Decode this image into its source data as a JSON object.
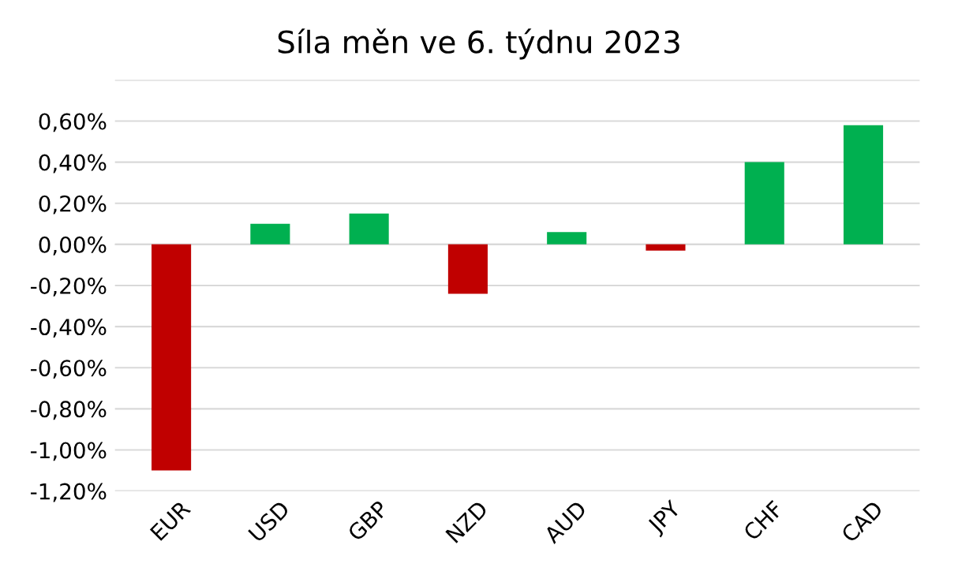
{
  "chart_data": {
    "type": "bar",
    "title": "Síla měn ve 6. týdnu 2023",
    "categories": [
      "EUR",
      "USD",
      "GBP",
      "NZD",
      "AUD",
      "JPY",
      "CHF",
      "CAD"
    ],
    "values": [
      -1.1,
      0.1,
      0.15,
      -0.24,
      0.06,
      -0.03,
      0.4,
      0.58
    ],
    "colors": [
      "#c00000",
      "#00b050",
      "#00b050",
      "#c00000",
      "#00b050",
      "#c00000",
      "#00b050",
      "#00b050"
    ],
    "ylim": [
      -1.2,
      0.8
    ],
    "yticks": [
      {
        "value": -1.2,
        "label": "-1,20%"
      },
      {
        "value": -1.0,
        "label": "-1,00%"
      },
      {
        "value": -0.8,
        "label": "-0,80%"
      },
      {
        "value": -0.6,
        "label": "-0,60%"
      },
      {
        "value": -0.4,
        "label": "-0,40%"
      },
      {
        "value": -0.2,
        "label": "-0,20%"
      },
      {
        "value": 0,
        "label": "0,00%"
      },
      {
        "value": 0.2,
        "label": "0,20%"
      },
      {
        "value": 0.4,
        "label": "0,40%"
      },
      {
        "value": 0.6,
        "label": "0,60%"
      },
      {
        "value": 0.8,
        "label": null
      }
    ],
    "grid": "y"
  }
}
